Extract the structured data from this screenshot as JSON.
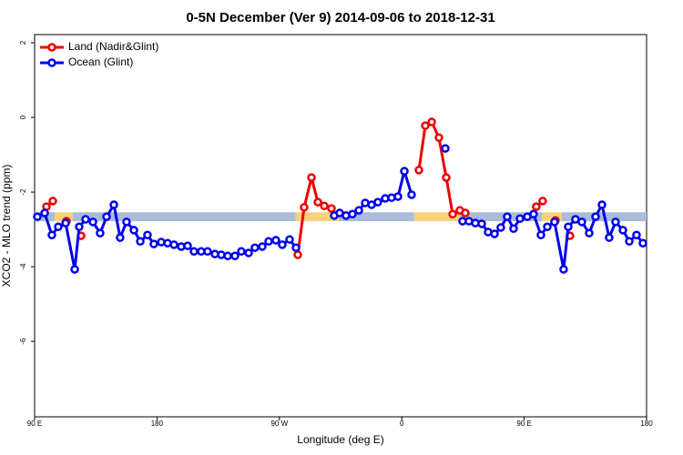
{
  "chart_data": {
    "type": "line",
    "title": "0-5N December (Ver 9)   2014-09-06 to 2018-12-31",
    "x_label": "Longitude (deg E)",
    "y_label": "XCO2 - MLO trend (ppm)",
    "xlim": [
      90,
      540
    ],
    "ylim": [
      -8.02,
      2.22
    ],
    "xticks": [
      {
        "value": 90,
        "label": "90 E"
      },
      180,
      {
        "value": 270,
        "label": "90 W"
      },
      {
        "value": 360,
        "label": "0"
      },
      {
        "value": 450,
        "label": "90 E"
      },
      180
    ],
    "yticks": [
      2,
      0,
      -2,
      -4,
      -6
    ],
    "legend": "top-left",
    "band": {
      "ylim": [
        -2.78,
        -2.54
      ],
      "segments": [
        {
          "x": [
            90,
            104.7
          ],
          "color": "#a9bcd9"
        },
        {
          "x": [
            104.7,
            118
          ],
          "color": "#f7d27a"
        },
        {
          "x": [
            118,
            282
          ],
          "color": "#a9bcd9"
        },
        {
          "x": [
            282,
            313.7
          ],
          "color": "#f7d27a"
        },
        {
          "x": [
            313.7,
            369
          ],
          "color": "#a9bcd9"
        },
        {
          "x": [
            369,
            402.7
          ],
          "color": "#f7d27a"
        },
        {
          "x": [
            402.7,
            463
          ],
          "color": "#a9bcd9"
        },
        {
          "x": [
            463,
            477.7
          ],
          "color": "#f7d27a"
        },
        {
          "x": [
            477.7,
            540
          ],
          "color": "#a9bcd9"
        }
      ]
    },
    "series": [
      {
        "name": "Land (Nadir&Glint)",
        "color": "#ee0000",
        "x": [
          98.7,
          103.4,
          null,
          113.4,
          null,
          124.2,
          null,
          283.5,
          288.2,
          293.6,
          298.3,
          303.0,
          308.3,
          null,
          372.6,
          377.3,
          382.0,
          387.3,
          392.7,
          397.4,
          402.7,
          406.7,
          null,
          458.9,
          463.6,
          null,
          473.0,
          null,
          483.7
        ],
        "values": [
          -2.39,
          -2.24,
          null,
          -2.78,
          null,
          -3.17,
          null,
          -3.68,
          -2.41,
          -1.61,
          -2.27,
          -2.37,
          -2.44,
          null,
          -1.41,
          -0.22,
          -0.12,
          -0.54,
          -1.61,
          -2.59,
          -2.49,
          -2.56,
          null,
          -2.39,
          -2.24,
          null,
          -2.76,
          null,
          -3.17
        ]
      },
      {
        "name": "Ocean (Glint)",
        "color": "#0000ee",
        "x": [
          92.0,
          97.4,
          102.7,
          107.4,
          112.8,
          119.5,
          122.8,
          127.5,
          132.9,
          138.2,
          142.9,
          148.3,
          152.9,
          157.6,
          163.0,
          167.7,
          173.0,
          177.7,
          183.1,
          187.8,
          192.5,
          197.8,
          202.5,
          207.2,
          212.5,
          217.2,
          222.6,
          227.3,
          232.0,
          237.3,
          242.0,
          247.4,
          252.0,
          257.4,
          262.1,
          267.4,
          272.1,
          277.5,
          282.2,
          null,
          310.3,
          314.3,
          319.0,
          323.7,
          328.4,
          333.1,
          337.8,
          342.4,
          347.8,
          352.5,
          357.2,
          361.9,
          367.2,
          null,
          392.0,
          null,
          404.7,
          409.4,
          414.1,
          418.8,
          423.5,
          428.2,
          432.8,
          437.5,
          442.2,
          446.9,
          452.3,
          456.9,
          462.3,
          467.0,
          472.3,
          479.0,
          482.4,
          487.7,
          492.4,
          497.8,
          502.5,
          507.2,
          512.5,
          517.2,
          522.6,
          527.3,
          532.6,
          537.3
        ],
        "values": [
          -2.66,
          -2.56,
          -3.15,
          -2.93,
          -2.83,
          -4.07,
          -2.93,
          -2.73,
          -2.8,
          -3.1,
          -2.66,
          -2.34,
          -3.22,
          -2.8,
          -3.02,
          -3.32,
          -3.15,
          -3.39,
          -3.34,
          -3.37,
          -3.41,
          -3.46,
          -3.44,
          -3.59,
          -3.59,
          -3.59,
          -3.66,
          -3.68,
          -3.71,
          -3.71,
          -3.59,
          -3.63,
          -3.49,
          -3.46,
          -3.32,
          -3.29,
          -3.41,
          -3.27,
          -3.49,
          null,
          -2.63,
          -2.56,
          -2.63,
          -2.59,
          -2.49,
          -2.29,
          -2.34,
          -2.27,
          -2.17,
          -2.15,
          -2.12,
          -1.44,
          -2.07,
          null,
          -0.83,
          null,
          -2.78,
          -2.78,
          -2.83,
          -2.85,
          -3.07,
          -3.12,
          -2.95,
          -2.66,
          -2.98,
          -2.71,
          -2.66,
          -2.59,
          -3.15,
          -2.93,
          -2.8,
          -4.07,
          -2.93,
          -2.73,
          -2.8,
          -3.1,
          -2.66,
          -2.34,
          -3.22,
          -2.8,
          -3.02,
          -3.32,
          -3.15,
          -3.37
        ]
      }
    ]
  }
}
